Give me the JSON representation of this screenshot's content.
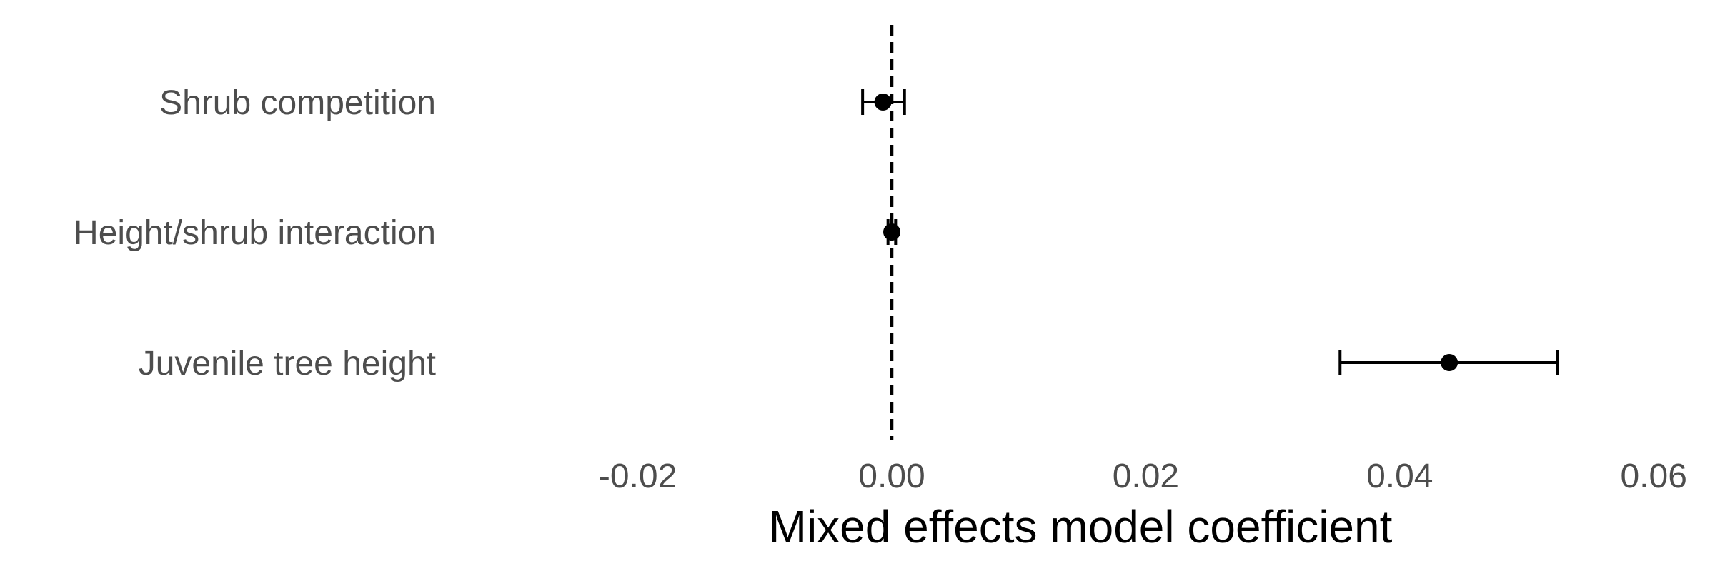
{
  "chart_data": {
    "type": "scatter",
    "subtype": "coefficient-plot",
    "title": "",
    "xlabel": "Mixed effects model coefficient",
    "ylabel": "",
    "xlim": [
      -0.025,
      0.063
    ],
    "x_ticks": [
      -0.02,
      0.0,
      0.02,
      0.04,
      0.06
    ],
    "x_tick_labels": [
      "-0.02",
      "0.00",
      "0.02",
      "0.04",
      "0.06"
    ],
    "reference_line": 0.0,
    "grid": false,
    "categories": [
      "Shrub competition",
      "Height/shrub interaction",
      "Juvenile tree height"
    ],
    "estimates": [
      -0.0007,
      0.0,
      0.0439
    ],
    "lower": [
      -0.0023,
      -0.0003,
      0.0353
    ],
    "upper": [
      0.001,
      0.0003,
      0.0524
    ],
    "colors": {
      "point": "#000000",
      "tick_text": "#4d4d4d",
      "title_text": "#000000"
    }
  }
}
